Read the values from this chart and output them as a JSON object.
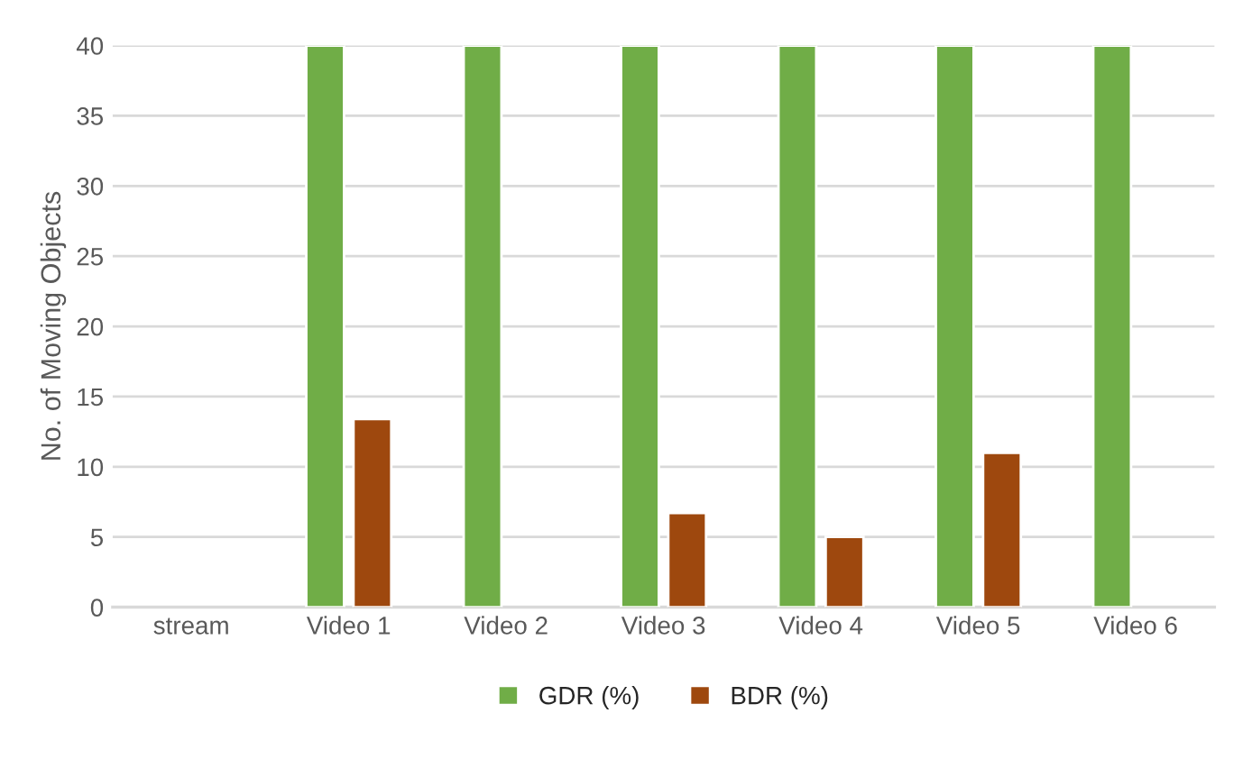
{
  "chart_data": {
    "type": "bar",
    "ylabel": "No. of Moving Objects",
    "categories": [
      "stream",
      "Video 1",
      "Video 2",
      "Video 3",
      "Video 4",
      "Video 5",
      "Video 6"
    ],
    "series": [
      {
        "name": "GDR (%)",
        "color": "#70ad47",
        "values": [
          null,
          40,
          40,
          40,
          40,
          40,
          40
        ]
      },
      {
        "name": "BDR (%)",
        "color": "#9e480e",
        "values": [
          null,
          13.4,
          null,
          6.7,
          5,
          11,
          null
        ]
      }
    ],
    "ylim": [
      0,
      40
    ],
    "yticks": [
      0,
      5,
      10,
      15,
      20,
      25,
      30,
      35,
      40
    ],
    "grid": "y",
    "legend": "bottom"
  }
}
